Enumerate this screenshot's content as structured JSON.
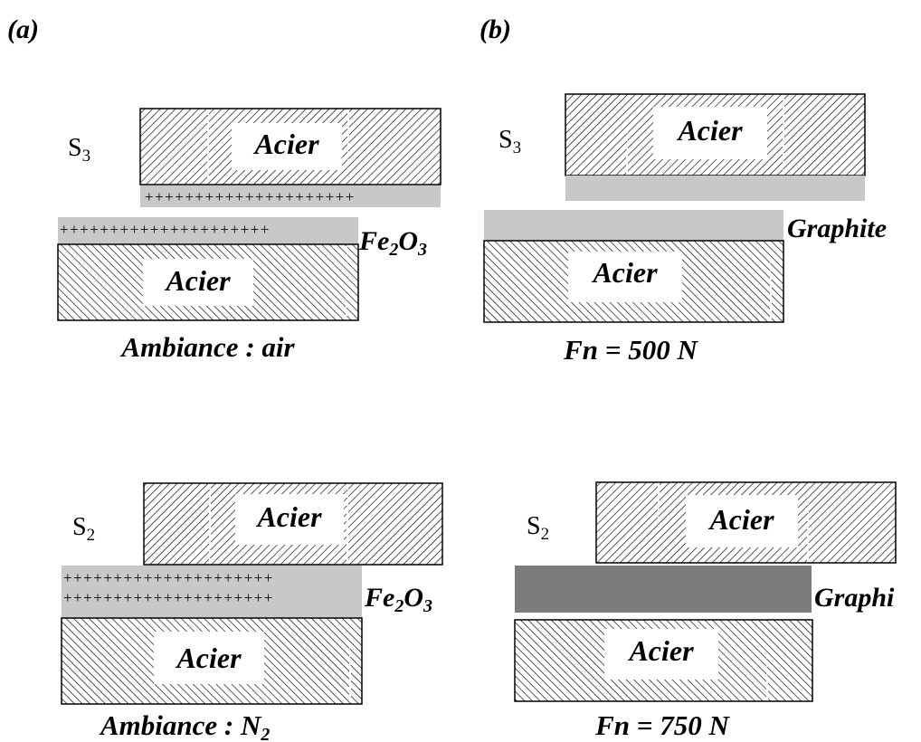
{
  "panel_labels": {
    "a": "(a)",
    "b": "(b)"
  },
  "material": "Acier",
  "contact_a_top": {
    "sample": {
      "letter": "S",
      "sub": "3"
    },
    "film": {
      "base": "Fe",
      "sub1": "2",
      "mid": "O",
      "sub2": "3"
    },
    "condition": "Ambiance : air"
  },
  "contact_a_bottom": {
    "sample": {
      "letter": "S",
      "sub": "2"
    },
    "film": {
      "base": "Fe",
      "sub1": "2",
      "mid": "O",
      "sub2": "3"
    },
    "condition": {
      "text": "Ambiance : N",
      "sub": "2"
    }
  },
  "contact_b_top": {
    "sample": {
      "letter": "S",
      "sub": "3"
    },
    "film": "Graphite",
    "condition": "Fn = 500 N"
  },
  "contact_b_bottom": {
    "sample": {
      "letter": "S",
      "sub": "2"
    },
    "film": "Graphi",
    "condition": "Fn = 750 N"
  },
  "colors": {
    "light_film": "#c8c8c8",
    "dark_film": "#7b7b7b",
    "outline": "#000000"
  }
}
